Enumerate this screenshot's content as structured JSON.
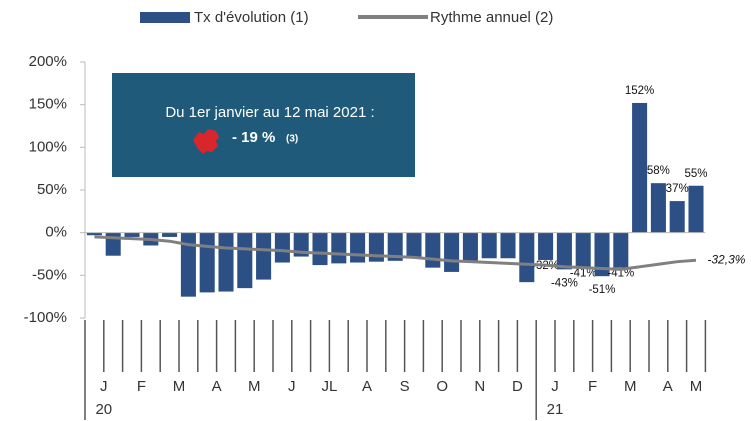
{
  "chart_data": {
    "type": "bar",
    "legend": {
      "bar_name": "Tx d'évolution (1)",
      "line_name": "Rythme annuel (2)"
    },
    "categories": [
      "J",
      null,
      "F",
      null,
      "M",
      null,
      "A",
      null,
      "M",
      null,
      "J",
      null,
      "JL",
      null,
      "A",
      null,
      "S",
      null,
      "O",
      null,
      "N",
      null,
      "D",
      null,
      "J",
      null,
      "F",
      null,
      "M",
      null,
      "A",
      null,
      "M"
    ],
    "year_labels": [
      "20",
      null,
      null,
      null,
      null,
      null,
      null,
      null,
      null,
      null,
      null,
      null,
      null,
      null,
      null,
      null,
      null,
      null,
      null,
      null,
      null,
      null,
      null,
      null,
      "21",
      null,
      null,
      null,
      null,
      null,
      null,
      null,
      null
    ],
    "series": [
      {
        "name": "Tx d'évolution (1)",
        "color": "#2c4f86",
        "values": [
          -3,
          -27,
          -5,
          -15,
          -5,
          -75,
          -70,
          -69,
          -65,
          -55,
          -35,
          -28,
          -38,
          -36,
          -35,
          -34,
          -33,
          -30,
          -41,
          -46,
          -34,
          -30,
          -30,
          -58,
          -32,
          -43,
          -41,
          -51,
          -41,
          152,
          58,
          37,
          55
        ],
        "value_labels": [
          null,
          null,
          null,
          null,
          null,
          null,
          null,
          null,
          null,
          null,
          null,
          null,
          null,
          null,
          null,
          null,
          null,
          null,
          null,
          null,
          null,
          null,
          null,
          null,
          "-32%",
          "-43%",
          "-41%",
          "-51%",
          "-41%",
          "152%",
          "58%",
          "37%",
          "55%"
        ]
      },
      {
        "name": "Rythme annuel (2)",
        "color": "#808080",
        "values": [
          -5,
          -6,
          -7,
          -8,
          -10,
          -14,
          -16,
          -18,
          -19,
          -20,
          -21,
          -23,
          -24,
          -25,
          -26,
          -27,
          -28,
          -29,
          -31,
          -33,
          -34,
          -35,
          -36,
          -37,
          -38,
          -40,
          -41,
          -42,
          -43,
          -40,
          -37,
          -34,
          -32.3
        ],
        "end_label": "-32,3%"
      }
    ],
    "ylim": [
      -100,
      200
    ],
    "yticks": [
      {
        "value": -100,
        "label": "-100%"
      },
      {
        "value": -50,
        "label": "-50%"
      },
      {
        "value": 0,
        "label": "0%"
      },
      {
        "value": 50,
        "label": "50%"
      },
      {
        "value": 100,
        "label": "100%"
      },
      {
        "value": 150,
        "label": "150%"
      },
      {
        "value": 200,
        "label": "200%"
      }
    ],
    "callout": {
      "line1": "Du 1er janvier au 12 mai 2021 :",
      "value": "- 19 %",
      "note": "(3)"
    }
  }
}
